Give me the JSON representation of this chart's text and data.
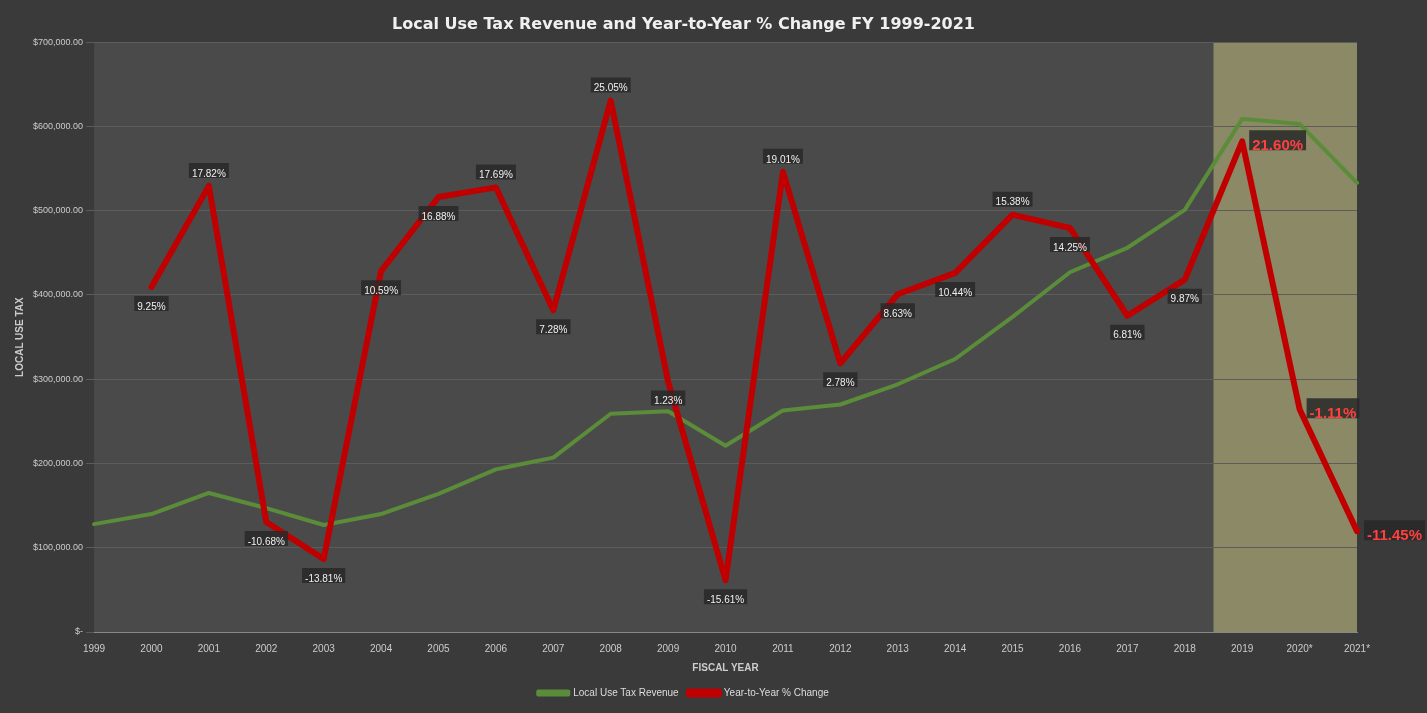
{
  "chart_data": {
    "type": "line",
    "title": "Local Use Tax Revenue and Year-to-Year % Change FY 1999-2021",
    "xlabel": "FISCAL YEAR",
    "ylabel": "LOCAL USE TAX",
    "categories": [
      "1999",
      "2000",
      "2001",
      "2002",
      "2003",
      "2004",
      "2005",
      "2006",
      "2007",
      "2008",
      "2009",
      "2010",
      "2011",
      "2012",
      "2013",
      "2014",
      "2015",
      "2016",
      "2017",
      "2018",
      "2019",
      "2020*",
      "2021*"
    ],
    "series": [
      {
        "name": "Local Use Tax Revenue",
        "color": "#5b8c3a",
        "values": [
          128000,
          140000,
          165000,
          147000,
          127000,
          140000,
          164000,
          193000,
          207000,
          259000,
          262000,
          221000,
          263000,
          270000,
          294000,
          324000,
          374000,
          427000,
          456000,
          501000,
          609000,
          603000,
          533000
        ]
      },
      {
        "name": "Year-to-Year % Change",
        "color": "#c00000",
        "axis": "y2",
        "values": [
          null,
          9.25,
          17.82,
          -10.68,
          -13.81,
          10.59,
          16.88,
          17.69,
          7.28,
          25.05,
          1.23,
          -15.61,
          19.01,
          2.78,
          8.63,
          10.44,
          15.38,
          14.25,
          6.81,
          9.87,
          21.6,
          -1.11,
          -11.45
        ],
        "value_labels": [
          null,
          "9.25%",
          "17.82%",
          "-10.68%",
          "-13.81%",
          "10.59%",
          "16.88%",
          "17.69%",
          "7.28%",
          "25.05%",
          "1.23%",
          "-15.61%",
          "19.01%",
          "2.78%",
          "8.63%",
          "10.44%",
          "15.38%",
          "14.25%",
          "6.81%",
          "9.87%",
          "21.60%",
          "-1.11%",
          "-11.45%"
        ]
      }
    ],
    "ylim": [
      0,
      700000
    ],
    "yticks": [
      {
        "value": 0,
        "label": "$-"
      },
      {
        "value": 100000,
        "label": "$100,000.00"
      },
      {
        "value": 200000,
        "label": "$200,000.00"
      },
      {
        "value": 300000,
        "label": "$300,000.00"
      },
      {
        "value": 400000,
        "label": "$400,000.00"
      },
      {
        "value": 500000,
        "label": "$500,000.00"
      },
      {
        "value": 600000,
        "label": "$600,000.00"
      },
      {
        "value": 700000,
        "label": "$700,000.00"
      }
    ],
    "tick_labels": "xy",
    "bands": [
      {
        "axis": "x",
        "from": "2019",
        "to": "2021*",
        "color": "#8c8a66"
      }
    ],
    "grid": "y",
    "legend": "bottom",
    "marker": "none",
    "line_style": "solid"
  }
}
